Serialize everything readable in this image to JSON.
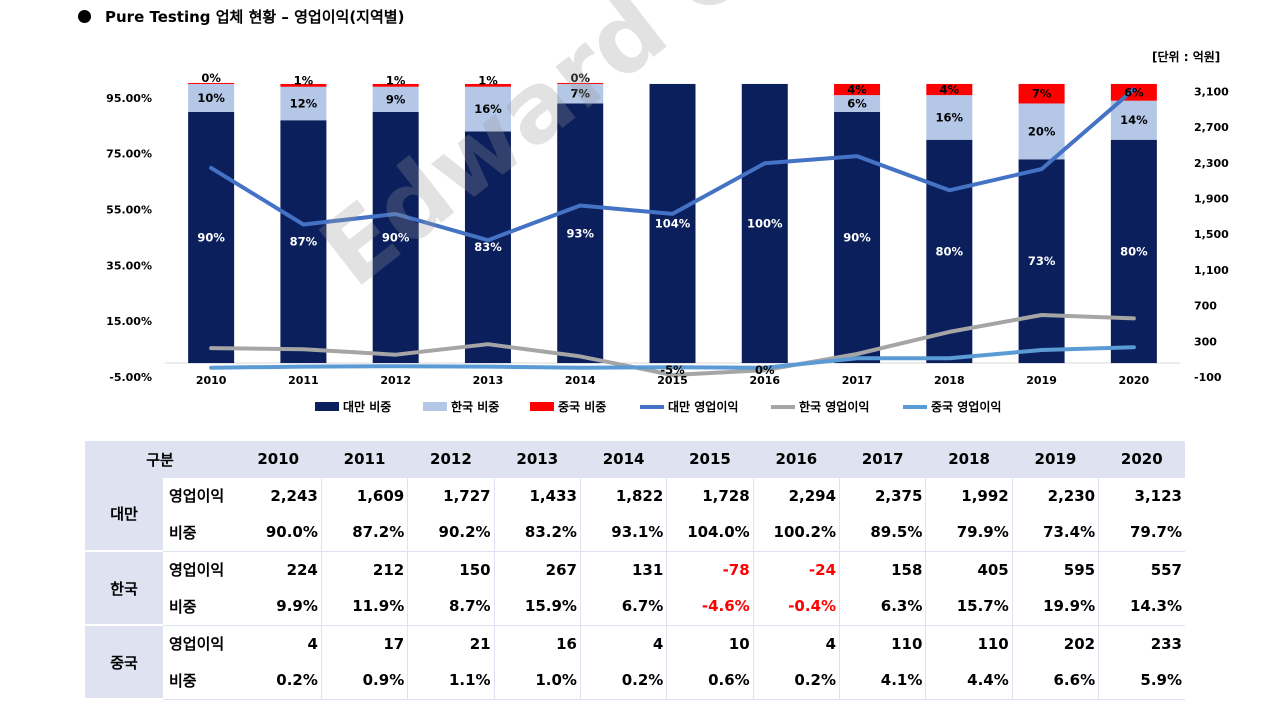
{
  "header": {
    "title": "Pure Testing 업체 현황 – 영업이익(지역별)",
    "unit": "[단위 : 억원]",
    "watermark": "Edward Choi"
  },
  "chart_data": {
    "type": "bar",
    "stacked": true,
    "categories": [
      "2010",
      "2011",
      "2012",
      "2013",
      "2014",
      "2015",
      "2016",
      "2017",
      "2018",
      "2019",
      "2020"
    ],
    "y_left": {
      "min": -5,
      "max": 105,
      "ticks": [
        "95.00%",
        "75.00%",
        "55.00%",
        "35.00%",
        "15.00%",
        "-5.00%"
      ]
    },
    "y_right": {
      "min": -100,
      "max": 3340,
      "ticks": [
        "3,100",
        "2,700",
        "2,300",
        "1,900",
        "1,500",
        "1,100",
        "700",
        "300",
        "-100"
      ]
    },
    "bar_series": [
      {
        "name": "대만 비중",
        "color": "#0b1f5c",
        "values": [
          90,
          87,
          90,
          83,
          93,
          104,
          100,
          90,
          80,
          73,
          80
        ],
        "labels": [
          "90%",
          "87%",
          "90%",
          "83%",
          "93%",
          "104%",
          "100%",
          "90%",
          "80%",
          "73%",
          "80%"
        ]
      },
      {
        "name": "한국 비중",
        "color": "#b4c7e7",
        "values": [
          10,
          12,
          9,
          16,
          7,
          -5,
          0,
          6,
          16,
          20,
          14
        ],
        "labels": [
          "10%",
          "12%",
          "9%",
          "16%",
          "7%",
          "-5%",
          "0%",
          "6%",
          "16%",
          "20%",
          "14%"
        ]
      },
      {
        "name": "중국 비중",
        "color": "#ff0000",
        "values": [
          0,
          1,
          1,
          1,
          0,
          0,
          0,
          4,
          4,
          7,
          6
        ],
        "labels": [
          "0%",
          "1%",
          "1%",
          "1%",
          "0%",
          "",
          "",
          "4%",
          "4%",
          "7%",
          "6%"
        ]
      }
    ],
    "line_series": [
      {
        "name": "대만 영업이익",
        "color": "#4472c4",
        "values": [
          2243,
          1609,
          1727,
          1433,
          1822,
          1728,
          2294,
          2375,
          1992,
          2230,
          3123
        ]
      },
      {
        "name": "한국 영업이익",
        "color": "#a5a5a5",
        "values": [
          224,
          212,
          150,
          267,
          131,
          -78,
          -24,
          158,
          405,
          595,
          557
        ]
      },
      {
        "name": "중국 영업이익",
        "color": "#5b9bd5",
        "values": [
          4,
          17,
          21,
          16,
          4,
          10,
          4,
          110,
          110,
          202,
          233
        ]
      }
    ],
    "legend": [
      "대만 비중",
      "한국 비중",
      "중국 비중",
      "대만 영업이익",
      "한국 영업이익",
      "중국 영업이익"
    ],
    "legend_position": "bottom"
  },
  "table": {
    "header": [
      "구분",
      "2010",
      "2011",
      "2012",
      "2013",
      "2014",
      "2015",
      "2016",
      "2017",
      "2018",
      "2019",
      "2020"
    ],
    "groups": [
      {
        "region": "대만",
        "rows": [
          {
            "label": "영업이익",
            "values": [
              "2,243",
              "1,609",
              "1,727",
              "1,433",
              "1,822",
              "1,728",
              "2,294",
              "2,375",
              "1,992",
              "2,230",
              "3,123"
            ]
          },
          {
            "label": "비중",
            "values": [
              "90.0%",
              "87.2%",
              "90.2%",
              "83.2%",
              "93.1%",
              "104.0%",
              "100.2%",
              "89.5%",
              "79.9%",
              "73.4%",
              "79.7%"
            ]
          }
        ]
      },
      {
        "region": "한국",
        "rows": [
          {
            "label": "영업이익",
            "values": [
              "224",
              "212",
              "150",
              "267",
              "131",
              "-78",
              "-24",
              "158",
              "405",
              "595",
              "557"
            ]
          },
          {
            "label": "비중",
            "values": [
              "9.9%",
              "11.9%",
              "8.7%",
              "15.9%",
              "6.7%",
              "-4.6%",
              "-0.4%",
              "6.3%",
              "15.7%",
              "19.9%",
              "14.3%"
            ]
          }
        ]
      },
      {
        "region": "중국",
        "rows": [
          {
            "label": "영업이익",
            "values": [
              "4",
              "17",
              "21",
              "16",
              "4",
              "10",
              "4",
              "110",
              "110",
              "202",
              "233"
            ]
          },
          {
            "label": "비중",
            "values": [
              "0.2%",
              "0.9%",
              "1.1%",
              "1.0%",
              "0.2%",
              "0.6%",
              "0.2%",
              "4.1%",
              "4.4%",
              "6.6%",
              "5.9%"
            ]
          }
        ]
      }
    ]
  }
}
